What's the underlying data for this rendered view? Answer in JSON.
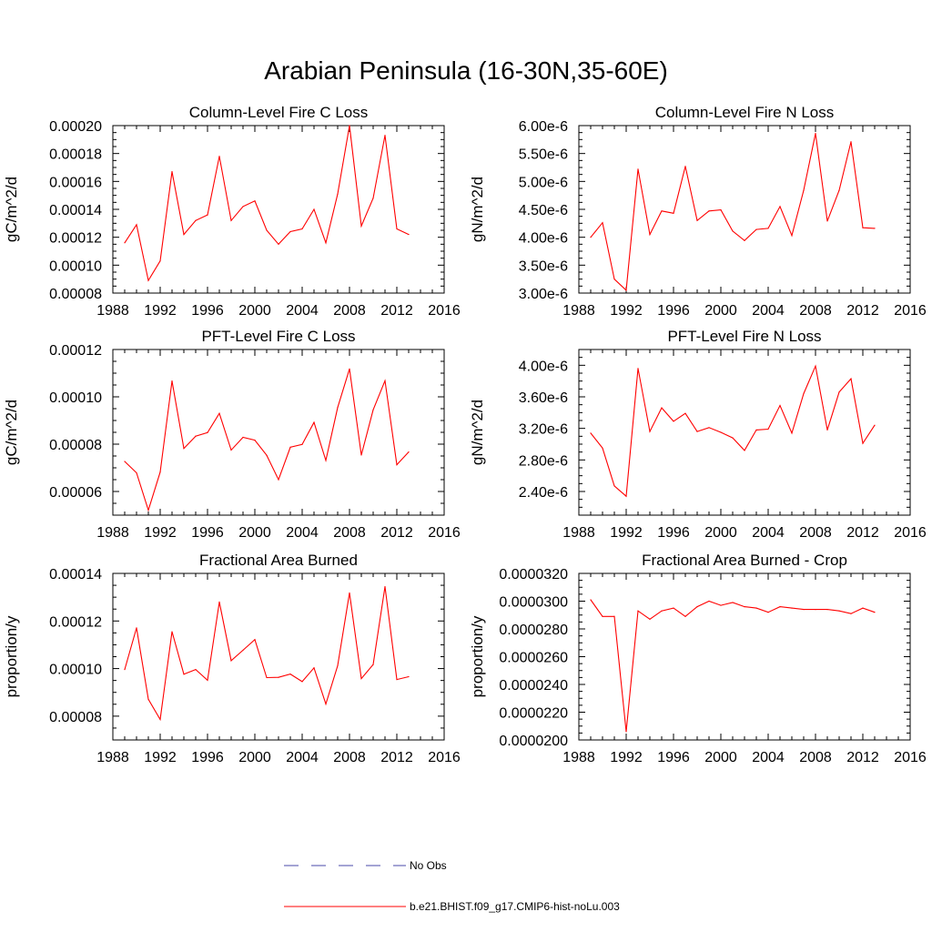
{
  "figure": {
    "title": "Arabian Peninsula (16-30N,35-60E)"
  },
  "colors": {
    "model_line": "#ff0000",
    "obs_line": "#4a4aa8",
    "axis": "#000000"
  },
  "legend": [
    {
      "label": "No Obs",
      "style": "dashed",
      "color": "#4a4aa8"
    },
    {
      "label": "b.e21.BHIST.f09_g17.CMIP6-hist-noLu.003",
      "style": "solid",
      "color": "#ff0000"
    }
  ],
  "chart_data": [
    {
      "type": "line",
      "title": "Column-Level Fire C Loss",
      "ylabel": "gC/m^2/d",
      "xlim": [
        1988,
        2016
      ],
      "x_ticks": [
        "1988",
        "1992",
        "1996",
        "2000",
        "2004",
        "2008",
        "2012",
        "2016"
      ],
      "ylim": [
        8e-05,
        0.0002
      ],
      "y_ticks": [
        "0.00008",
        "0.00010",
        "0.00012",
        "0.00014",
        "0.00016",
        "0.00018",
        "0.00020"
      ],
      "x": [
        1989,
        1990,
        1991,
        1992,
        1993,
        1994,
        1995,
        1996,
        1997,
        1998,
        1999,
        2000,
        2001,
        2002,
        2003,
        2004,
        2005,
        2006,
        2007,
        2008,
        2009,
        2010,
        2011,
        2012,
        2013
      ],
      "series": [
        {
          "name": "b.e21.BHIST.f09_g17.CMIP6-hist-noLu.003",
          "values": [
            0.000116,
            0.000129,
            8.9e-05,
            0.000103,
            0.000167,
            0.000122,
            0.000132,
            0.000136,
            0.000178,
            0.000132,
            0.000142,
            0.000146,
            0.000125,
            0.000115,
            0.000124,
            0.000126,
            0.00014,
            0.000116,
            0.000151,
            0.0002,
            0.000128,
            0.000148,
            0.000193,
            0.000126,
            0.000122
          ]
        }
      ]
    },
    {
      "type": "line",
      "title": "Column-Level Fire N Loss",
      "ylabel": "gN/m^2/d",
      "xlim": [
        1988,
        2016
      ],
      "x_ticks": [
        "1988",
        "1992",
        "1996",
        "2000",
        "2004",
        "2008",
        "2012",
        "2016"
      ],
      "ylim": [
        3e-06,
        6e-06
      ],
      "y_ticks": [
        "3.00e-6",
        "3.50e-6",
        "4.00e-6",
        "4.50e-6",
        "5.00e-6",
        "5.50e-6",
        "6.00e-6"
      ],
      "x": [
        1989,
        1990,
        1991,
        1992,
        1993,
        1994,
        1995,
        1996,
        1997,
        1998,
        1999,
        2000,
        2001,
        2002,
        2003,
        2004,
        2005,
        2006,
        2007,
        2008,
        2009,
        2010,
        2011,
        2012,
        2013
      ],
      "series": [
        {
          "name": "b.e21.BHIST.f09_g17.CMIP6-hist-noLu.003",
          "values": [
            4e-06,
            4.26e-06,
            3.25e-06,
            3.05e-06,
            5.22e-06,
            4.05e-06,
            4.47e-06,
            4.43e-06,
            5.27e-06,
            4.3e-06,
            4.47e-06,
            4.49e-06,
            4.11e-06,
            3.94e-06,
            4.14e-06,
            4.16e-06,
            4.55e-06,
            4.03e-06,
            4.84e-06,
            5.86e-06,
            4.29e-06,
            4.84e-06,
            5.71e-06,
            4.17e-06,
            4.16e-06
          ]
        }
      ]
    },
    {
      "type": "line",
      "title": "PFT-Level Fire C Loss",
      "ylabel": "gC/m^2/d",
      "xlim": [
        1988,
        2016
      ],
      "x_ticks": [
        "1988",
        "1992",
        "1996",
        "2000",
        "2004",
        "2008",
        "2012",
        "2016"
      ],
      "ylim": [
        5e-05,
        0.00012
      ],
      "y_ticks": [
        "0.00006",
        "0.00008",
        "0.00010",
        "0.00012"
      ],
      "x": [
        1989,
        1990,
        1991,
        1992,
        1993,
        1994,
        1995,
        1996,
        1997,
        1998,
        1999,
        2000,
        2001,
        2002,
        2003,
        2004,
        2005,
        2006,
        2007,
        2008,
        2009,
        2010,
        2011,
        2012,
        2013
      ],
      "series": [
        {
          "name": "b.e21.BHIST.f09_g17.CMIP6-hist-noLu.003",
          "values": [
            7.27e-05,
            6.79e-05,
            5.21e-05,
            6.82e-05,
            0.0001067,
            7.82e-05,
            8.34e-05,
            8.49e-05,
            9.3e-05,
            7.75e-05,
            8.29e-05,
            8.17e-05,
            7.53e-05,
            6.5e-05,
            7.87e-05,
            7.99e-05,
            8.92e-05,
            7.31e-05,
            9.55e-05,
            0.0001118,
            7.54e-05,
            9.45e-05,
            0.0001068,
            7.13e-05,
            7.67e-05
          ]
        }
      ]
    },
    {
      "type": "line",
      "title": "PFT-Level Fire N Loss",
      "ylabel": "gN/m^2/d",
      "xlim": [
        1988,
        2016
      ],
      "x_ticks": [
        "1988",
        "1992",
        "1996",
        "2000",
        "2004",
        "2008",
        "2012",
        "2016"
      ],
      "ylim": [
        2.1e-06,
        4.2e-06
      ],
      "y_ticks": [
        "2.40e-6",
        "2.80e-6",
        "3.20e-6",
        "3.60e-6",
        "4.00e-6"
      ],
      "x": [
        1989,
        1990,
        1991,
        1992,
        1993,
        1994,
        1995,
        1996,
        1997,
        1998,
        1999,
        2000,
        2001,
        2002,
        2003,
        2004,
        2005,
        2006,
        2007,
        2008,
        2009,
        2010,
        2011,
        2012,
        2013
      ],
      "series": [
        {
          "name": "b.e21.BHIST.f09_g17.CMIP6-hist-noLu.003",
          "values": [
            3.14e-06,
            2.95e-06,
            2.47e-06,
            2.34e-06,
            3.96e-06,
            3.16e-06,
            3.46e-06,
            3.29e-06,
            3.39e-06,
            3.16e-06,
            3.21e-06,
            3.15e-06,
            3.08e-06,
            2.92e-06,
            3.18e-06,
            3.19e-06,
            3.49e-06,
            3.14e-06,
            3.64e-06,
            3.99e-06,
            3.18e-06,
            3.66e-06,
            3.83e-06,
            3.01e-06,
            3.24e-06
          ]
        }
      ]
    },
    {
      "type": "line",
      "title": "Fractional Area Burned",
      "ylabel": "proportion/y",
      "xlim": [
        1988,
        2016
      ],
      "x_ticks": [
        "1988",
        "1992",
        "1996",
        "2000",
        "2004",
        "2008",
        "2012",
        "2016"
      ],
      "ylim": [
        7e-05,
        0.00014
      ],
      "y_ticks": [
        "0.00008",
        "0.00010",
        "0.00012",
        "0.00014"
      ],
      "x": [
        1989,
        1990,
        1991,
        1992,
        1993,
        1994,
        1995,
        1996,
        1997,
        1998,
        1999,
        2000,
        2001,
        2002,
        2003,
        2004,
        2005,
        2006,
        2007,
        2008,
        2009,
        2010,
        2011,
        2012,
        2013
      ],
      "series": [
        {
          "name": "b.e21.BHIST.f09_g17.CMIP6-hist-noLu.003",
          "values": [
            9.96e-05,
            0.0001171,
            8.71e-05,
            7.86e-05,
            0.0001155,
            9.76e-05,
            9.96e-05,
            9.51e-05,
            0.000128,
            0.0001033,
            0.0001077,
            0.0001122,
            9.62e-05,
            9.63e-05,
            9.77e-05,
            9.45e-05,
            0.0001003,
            8.51e-05,
            0.0001012,
            0.0001318,
            9.58e-05,
            0.0001017,
            0.0001344,
            9.54e-05,
            9.66e-05
          ]
        }
      ]
    },
    {
      "type": "line",
      "title": "Fractional Area Burned - Crop",
      "ylabel": "proportion/y",
      "xlim": [
        1988,
        2016
      ],
      "x_ticks": [
        "1988",
        "1992",
        "1996",
        "2000",
        "2004",
        "2008",
        "2012",
        "2016"
      ],
      "ylim": [
        2e-05,
        3.2e-05
      ],
      "y_ticks": [
        "0.0000200",
        "0.0000220",
        "0.0000240",
        "0.0000260",
        "0.0000280",
        "0.0000300",
        "0.0000320"
      ],
      "x": [
        1989,
        1990,
        1991,
        1992,
        1993,
        1994,
        1995,
        1996,
        1997,
        1998,
        1999,
        2000,
        2001,
        2002,
        2003,
        2004,
        2005,
        2006,
        2007,
        2008,
        2009,
        2010,
        2011,
        2012,
        2013
      ],
      "series": [
        {
          "name": "b.e21.BHIST.f09_g17.CMIP6-hist-noLu.003",
          "values": [
            3.01e-05,
            2.89e-05,
            2.89e-05,
            2.06e-05,
            2.93e-05,
            2.87e-05,
            2.93e-05,
            2.95e-05,
            2.89e-05,
            2.96e-05,
            3e-05,
            2.97e-05,
            2.99e-05,
            2.96e-05,
            2.95e-05,
            2.92e-05,
            2.96e-05,
            2.95e-05,
            2.94e-05,
            2.94e-05,
            2.94e-05,
            2.93e-05,
            2.91e-05,
            2.95e-05,
            2.92e-05
          ]
        }
      ]
    }
  ]
}
